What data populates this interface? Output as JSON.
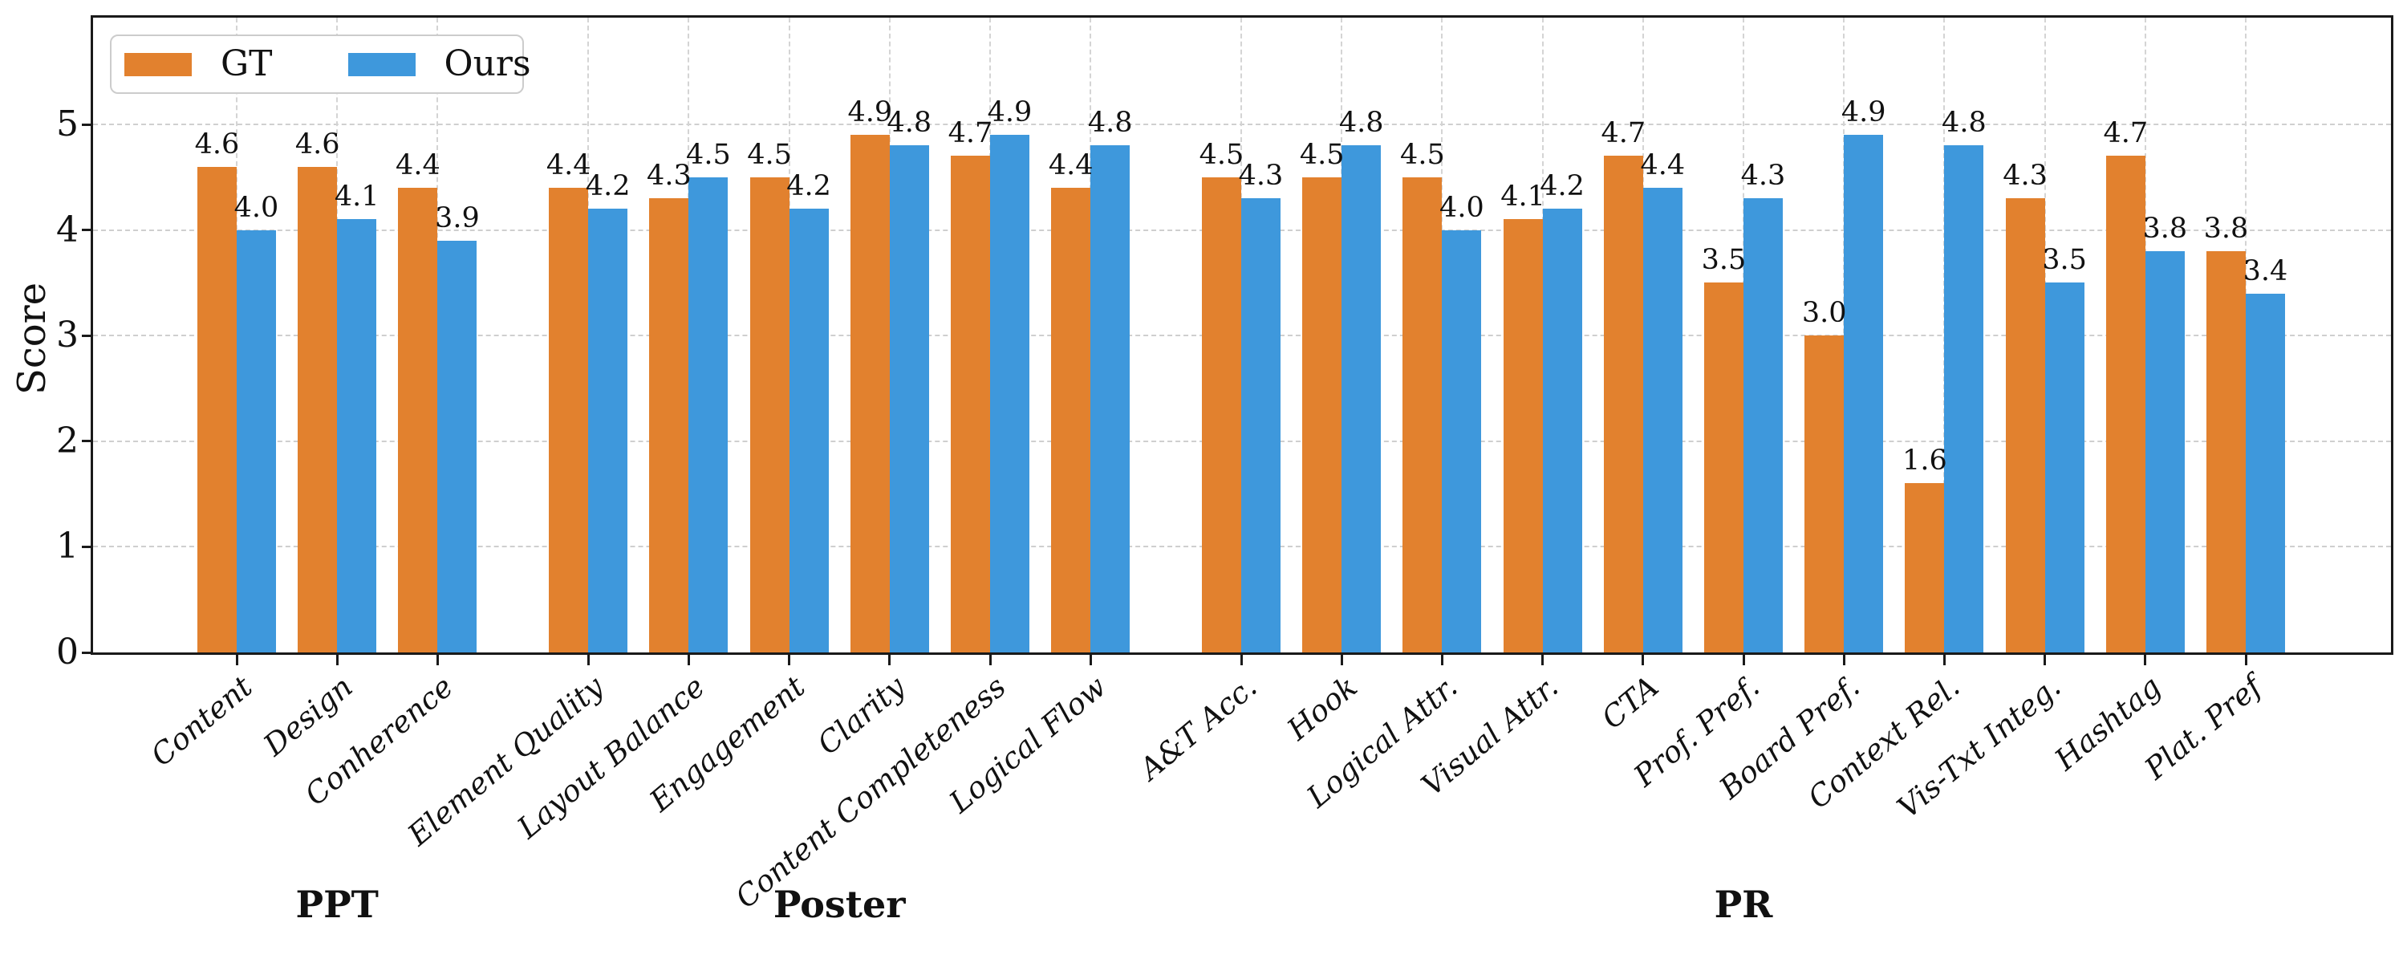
{
  "chart_data": {
    "type": "bar",
    "title": "",
    "ylabel": "Score",
    "ylim": [
      0,
      6
    ],
    "yticks": [
      "0",
      "1",
      "2",
      "3",
      "4",
      "5"
    ],
    "grid": true,
    "legend_position": "upper-left",
    "legend": [
      {
        "name": "GT",
        "color": "#E2812E"
      },
      {
        "name": "Ours",
        "color": "#3E98DC"
      }
    ],
    "groups": [
      {
        "label": "PPT",
        "categories": [
          "Content",
          "Design",
          "Conherence"
        ],
        "series": [
          {
            "name": "GT",
            "values": [
              4.6,
              4.6,
              4.4
            ]
          },
          {
            "name": "Ours",
            "values": [
              4.0,
              4.1,
              3.9
            ]
          }
        ]
      },
      {
        "label": "Poster",
        "categories": [
          "Element Quality",
          "Layout Balance",
          "Engagement",
          "Clarity",
          "Content Completeness",
          "Logical Flow"
        ],
        "series": [
          {
            "name": "GT",
            "values": [
              4.4,
              4.3,
              4.5,
              4.9,
              4.7,
              4.4
            ]
          },
          {
            "name": "Ours",
            "values": [
              4.2,
              4.5,
              4.2,
              4.8,
              4.9,
              4.8
            ]
          }
        ]
      },
      {
        "label": "PR",
        "categories": [
          "A&T Acc.",
          "Hook",
          "Logical Attr.",
          "Visual Attr.",
          "CTA",
          "Prof. Pref.",
          "Board Pref.",
          "Context Rel.",
          "Vis-Txt Integ.",
          "Hashtag",
          "Plat. Pref"
        ],
        "series": [
          {
            "name": "GT",
            "values": [
              4.5,
              4.5,
              4.5,
              4.1,
              4.7,
              3.5,
              3.0,
              1.6,
              4.3,
              4.7,
              3.8
            ]
          },
          {
            "name": "Ours",
            "values": [
              4.3,
              4.8,
              4.0,
              4.2,
              4.4,
              4.3,
              4.9,
              4.8,
              3.5,
              3.8,
              3.4
            ]
          }
        ]
      }
    ],
    "colors": {
      "grid": "#cfcfcf",
      "frame": "#1a1a1a",
      "bar_label": "#111111"
    }
  }
}
